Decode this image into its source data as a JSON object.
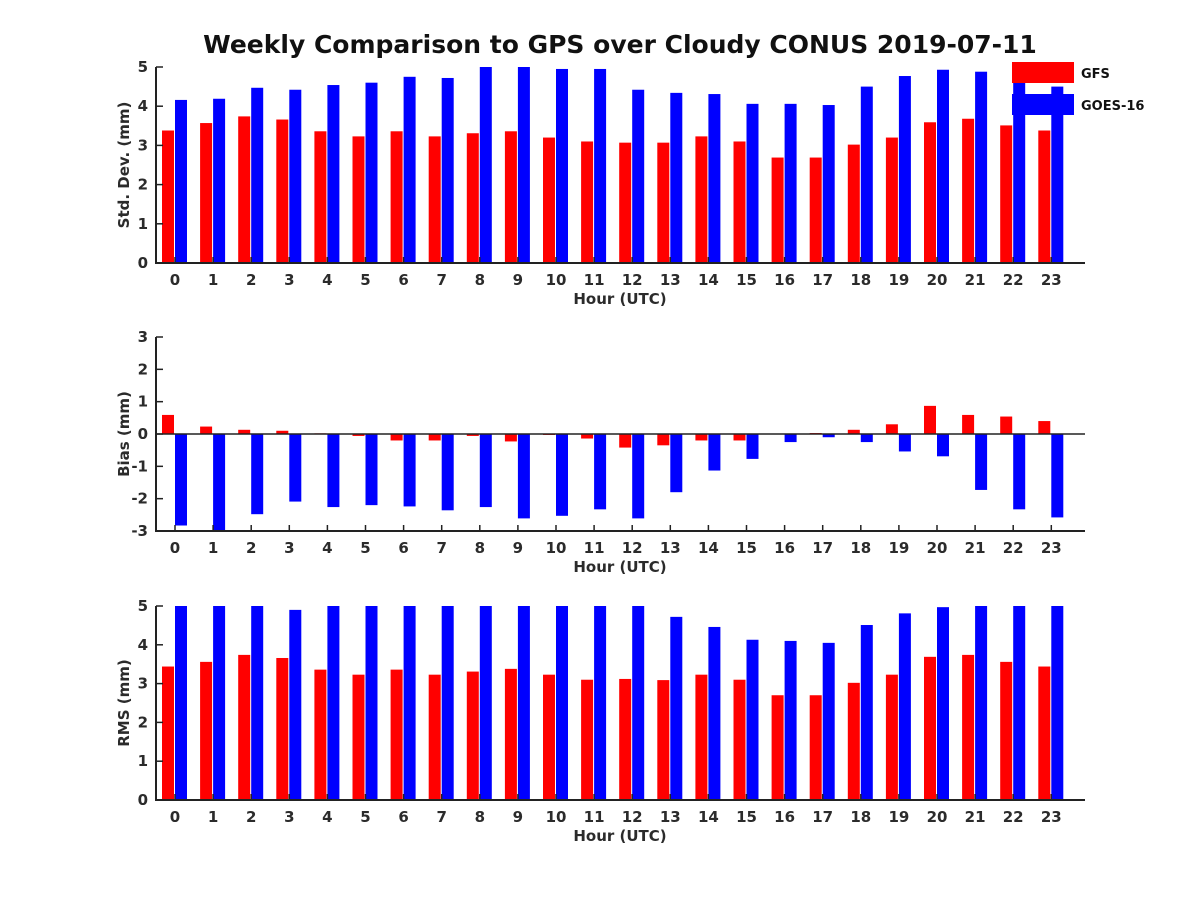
{
  "figure_title": "Weekly Comparison to GPS over Cloudy CONUS 2019-07-11",
  "chart_data": [
    {
      "type": "bar",
      "xlabel": "Hour (UTC)",
      "ylabel": "Std. Dev. (mm)",
      "ylim": [
        0,
        5
      ],
      "yticks": [
        0,
        1,
        2,
        3,
        4,
        5
      ],
      "categories": [
        "0",
        "1",
        "2",
        "3",
        "4",
        "5",
        "6",
        "7",
        "8",
        "9",
        "10",
        "11",
        "12",
        "13",
        "14",
        "15",
        "16",
        "17",
        "18",
        "19",
        "20",
        "21",
        "22",
        "23"
      ],
      "series": [
        {
          "name": "GFS",
          "color": "#ff0000",
          "values": [
            3.38,
            3.57,
            3.74,
            3.66,
            3.36,
            3.23,
            3.36,
            3.23,
            3.31,
            3.36,
            3.2,
            3.1,
            3.07,
            3.07,
            3.23,
            3.1,
            2.69,
            2.69,
            3.02,
            3.2,
            3.59,
            3.68,
            3.51,
            3.38
          ]
        },
        {
          "name": "GOES-16",
          "color": "#0000ff",
          "values": [
            4.16,
            4.19,
            4.47,
            4.42,
            4.54,
            4.6,
            4.75,
            4.72,
            5.0,
            5.0,
            4.95,
            4.95,
            4.42,
            4.34,
            4.31,
            4.06,
            4.06,
            4.03,
            4.5,
            4.77,
            4.93,
            4.88,
            4.6,
            4.5
          ]
        }
      ],
      "legend": "top-right"
    },
    {
      "type": "bar",
      "xlabel": "Hour (UTC)",
      "ylabel": "Bias (mm)",
      "ylim": [
        -3,
        3
      ],
      "yticks": [
        -3,
        -2,
        -1,
        0,
        1,
        2,
        3
      ],
      "categories": [
        "0",
        "1",
        "2",
        "3",
        "4",
        "5",
        "6",
        "7",
        "8",
        "9",
        "10",
        "11",
        "12",
        "13",
        "14",
        "15",
        "16",
        "17",
        "18",
        "19",
        "20",
        "21",
        "22",
        "23"
      ],
      "series": [
        {
          "name": "GFS",
          "color": "#ff0000",
          "values": [
            0.59,
            0.23,
            0.13,
            0.1,
            0.02,
            -0.06,
            -0.2,
            -0.2,
            -0.06,
            -0.23,
            -0.03,
            -0.14,
            -0.42,
            -0.35,
            -0.2,
            -0.2,
            0.0,
            0.03,
            0.13,
            0.3,
            0.87,
            0.59,
            0.54,
            0.4
          ]
        },
        {
          "name": "GOES-16",
          "color": "#0000ff",
          "values": [
            -2.83,
            -2.98,
            -2.48,
            -2.09,
            -2.26,
            -2.2,
            -2.24,
            -2.36,
            -2.26,
            -2.61,
            -2.53,
            -2.33,
            -2.61,
            -1.8,
            -1.13,
            -0.77,
            -0.25,
            -0.1,
            -0.25,
            -0.54,
            -0.69,
            -1.73,
            -2.33,
            -2.58
          ]
        }
      ]
    },
    {
      "type": "bar",
      "xlabel": "Hour (UTC)",
      "ylabel": "RMS (mm)",
      "ylim": [
        0,
        5
      ],
      "yticks": [
        0,
        1,
        2,
        3,
        4,
        5
      ],
      "categories": [
        "0",
        "1",
        "2",
        "3",
        "4",
        "5",
        "6",
        "7",
        "8",
        "9",
        "10",
        "11",
        "12",
        "13",
        "14",
        "15",
        "16",
        "17",
        "18",
        "19",
        "20",
        "21",
        "22",
        "23"
      ],
      "series": [
        {
          "name": "GFS",
          "color": "#ff0000",
          "values": [
            3.44,
            3.56,
            3.74,
            3.66,
            3.36,
            3.23,
            3.36,
            3.23,
            3.31,
            3.38,
            3.23,
            3.1,
            3.12,
            3.09,
            3.23,
            3.1,
            2.7,
            2.7,
            3.02,
            3.23,
            3.69,
            3.74,
            3.56,
            3.44
          ]
        },
        {
          "name": "GOES-16",
          "color": "#0000ff",
          "values": [
            5.0,
            5.0,
            5.0,
            4.9,
            5.0,
            5.0,
            5.0,
            5.0,
            5.0,
            5.0,
            5.0,
            5.0,
            5.0,
            4.72,
            4.46,
            4.13,
            4.1,
            4.05,
            4.51,
            4.81,
            4.97,
            5.0,
            5.0,
            5.0
          ]
        }
      ]
    }
  ]
}
